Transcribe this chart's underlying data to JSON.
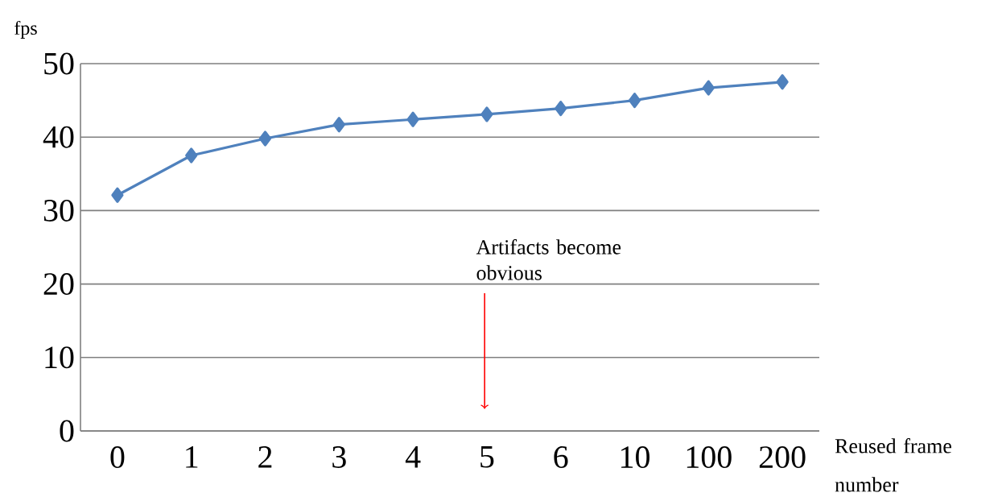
{
  "chart_data": {
    "type": "line",
    "xlabel": "Reused frame number",
    "ylabel": "fps",
    "categories": [
      "0",
      "1",
      "2",
      "3",
      "4",
      "5",
      "6",
      "10",
      "100",
      "200"
    ],
    "series": [
      {
        "color": "#4f81bd",
        "values": [
          32.1,
          37.5,
          39.8,
          41.7,
          42.4,
          43.1,
          43.9,
          45.0,
          46.7,
          47.5
        ]
      }
    ],
    "ylim": [
      0,
      50
    ],
    "yticks": [
      0,
      10,
      20,
      30,
      40,
      50
    ],
    "grid": "y",
    "marker": "diamond",
    "line_style": "solid",
    "annotations": [
      "Artifacts become obvious"
    ]
  }
}
